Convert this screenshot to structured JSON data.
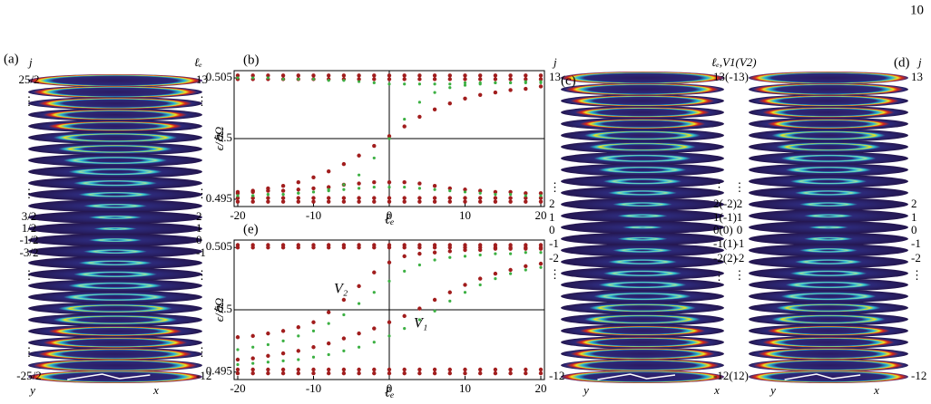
{
  "page_number": "10",
  "panels": {
    "a": {
      "label": "(a)",
      "j_label": "j",
      "l_label": "ℓₑ",
      "left_labels": [
        "25/2",
        "⋮",
        "⋮",
        "3/2",
        "1/2",
        "-1/2",
        "-3/2",
        "⋮",
        "⋮",
        "-25/2"
      ],
      "right_labels": [
        "13",
        "⋮",
        "⋮",
        "2",
        "1",
        "0",
        "-1",
        "⋮",
        "⋮",
        "-12"
      ],
      "y_axis": "y",
      "x_axis": "x"
    },
    "b": {
      "label": "(b)",
      "type": "scatter",
      "xlabel": "ℓₑ",
      "ylabel": "ϵ/ℏΩ",
      "xlim": [
        -20,
        20
      ],
      "ylim": [
        0.4944,
        0.5056
      ],
      "xticks": [
        -20,
        -10,
        0,
        10,
        20
      ],
      "yticks": [
        0.495,
        0.5,
        0.505
      ],
      "x": [
        -20,
        -18,
        -16,
        -14,
        -12,
        -10,
        -8,
        -6,
        -4,
        -2,
        0,
        2,
        4,
        6,
        8,
        10,
        12,
        14,
        16,
        18,
        20
      ],
      "series": [
        {
          "color": "#a11d1d",
          "values": [
            0.5052,
            0.5052,
            0.5052,
            0.5052,
            0.5052,
            0.5052,
            0.5052,
            0.5052,
            0.5052,
            0.5052,
            0.5052,
            0.5052,
            0.5052,
            0.5052,
            0.5052,
            0.5052,
            0.5052,
            0.5052,
            0.5052,
            0.5052,
            0.5052
          ]
        },
        {
          "color": "#a11d1d",
          "values": [
            0.5049,
            0.5049,
            0.5049,
            0.5049,
            0.5049,
            0.5049,
            0.5049,
            0.5049,
            0.5049,
            0.5049,
            0.5049,
            0.5049,
            0.5049,
            0.5049,
            0.5049,
            0.5049,
            0.5049,
            0.5049,
            0.5049,
            0.5049,
            0.5049
          ]
        },
        {
          "color": "#a11d1d",
          "values": [
            0.4955,
            0.4957,
            0.4959,
            0.4961,
            0.4964,
            0.4968,
            0.4973,
            0.4979,
            0.4986,
            0.4994,
            0.5002,
            0.501,
            0.5018,
            0.5024,
            0.5029,
            0.5033,
            0.5036,
            0.5038,
            0.504,
            0.5041,
            0.5043
          ]
        },
        {
          "color": "#a11d1d",
          "values": [
            0.4956,
            0.4956,
            0.4957,
            0.4957,
            0.4958,
            0.4959,
            0.496,
            0.4962,
            0.4963,
            0.4964,
            0.4964,
            0.4964,
            0.4963,
            0.4961,
            0.4959,
            0.4958,
            0.4957,
            0.4956,
            0.4956,
            0.4955,
            0.4955
          ]
        },
        {
          "color": "#a11d1d",
          "values": [
            0.4951,
            0.4951,
            0.4951,
            0.4951,
            0.4951,
            0.4951,
            0.4951,
            0.4951,
            0.4951,
            0.4951,
            0.4951,
            0.4951,
            0.4951,
            0.4951,
            0.4951,
            0.4951,
            0.4951,
            0.4951,
            0.4951,
            0.4951,
            0.4951
          ]
        },
        {
          "color": "#a11d1d",
          "values": [
            0.4948,
            0.4948,
            0.4948,
            0.4948,
            0.4948,
            0.4948,
            0.4948,
            0.4948,
            0.4948,
            0.4948,
            0.4948,
            0.4948,
            0.4948,
            0.4948,
            0.4948,
            0.4948,
            0.4948,
            0.4948,
            0.4948,
            0.4948,
            0.4948
          ]
        },
        {
          "color": "#3cb043",
          "values": [
            0.505,
            0.505,
            0.505,
            0.5049,
            0.5049,
            0.5049,
            0.5048,
            0.5048,
            0.5047,
            0.5046,
            0.5045,
            0.5045,
            0.5045,
            0.5045,
            0.5045,
            0.5046,
            0.5046,
            0.5046,
            0.5046,
            0.5046,
            0.5046
          ]
        },
        {
          "color": "#3cb043",
          "values": [
            0.4953,
            0.4953,
            0.4954,
            0.4954,
            0.4955,
            0.4956,
            0.4958,
            0.4962,
            0.497,
            0.4984,
            0.5,
            0.5016,
            0.503,
            0.5038,
            0.5042,
            0.5044,
            0.5045,
            0.5046,
            0.5046,
            0.5047,
            0.5047
          ]
        },
        {
          "color": "#3cb043",
          "values": [
            0.4953,
            0.4953,
            0.4954,
            0.4954,
            0.4955,
            0.4956,
            0.4957,
            0.4958,
            0.4959,
            0.496,
            0.496,
            0.496,
            0.4959,
            0.4958,
            0.4957,
            0.4956,
            0.4955,
            0.4954,
            0.4954,
            0.4953,
            0.4953
          ]
        }
      ]
    },
    "c": {
      "label": "(c)",
      "j_label": "j",
      "l_label": "ℓₑ,V1(V2)",
      "left_labels": [
        "13",
        "⋮",
        "2",
        "1",
        "0",
        "-1",
        "-2",
        "⋮",
        "-12"
      ],
      "right_labels": [
        "13(-13)",
        "⋮",
        "2(-2)",
        "1(-1)",
        "0(0)",
        "-1(1)",
        "-2(2)",
        "⋮",
        "-12(12)"
      ],
      "y_axis": "y",
      "x_axis": "x"
    },
    "d": {
      "label": "(d)",
      "j_label": "j",
      "left_labels": [
        "⋮",
        "2",
        "1",
        "0",
        "-1",
        "-2",
        "⋮"
      ],
      "right_labels": [
        "13",
        "2",
        "1",
        "0",
        "-1",
        "-2",
        "⋮",
        "-12"
      ],
      "y_axis": "y",
      "x_axis": "x"
    },
    "e": {
      "label": "(e)",
      "type": "scatter",
      "xlabel": "ℓₑ",
      "ylabel": "ϵ/ℏΩ",
      "xlim": [
        -20,
        20
      ],
      "ylim": [
        0.4944,
        0.5056
      ],
      "xticks": [
        -20,
        -10,
        0,
        10,
        20
      ],
      "yticks": [
        0.495,
        0.5,
        0.505
      ],
      "annotations": [
        "V₂",
        "V₁"
      ],
      "x": [
        -20,
        -18,
        -16,
        -14,
        -12,
        -10,
        -8,
        -6,
        -4,
        -2,
        0,
        2,
        4,
        6,
        8,
        10,
        12,
        14,
        16,
        18,
        20
      ],
      "series": [
        {
          "color": "#a11d1d",
          "values": [
            0.5052,
            0.5052,
            0.5052,
            0.5052,
            0.5052,
            0.5052,
            0.5052,
            0.5052,
            0.5052,
            0.5052,
            0.5052,
            0.5052,
            0.5052,
            0.5052,
            0.5052,
            0.5052,
            0.5052,
            0.5052,
            0.5052,
            0.5052,
            0.5052
          ]
        },
        {
          "color": "#a11d1d",
          "values": [
            0.505,
            0.505,
            0.505,
            0.505,
            0.505,
            0.505,
            0.505,
            0.505,
            0.505,
            0.505,
            0.505,
            0.505,
            0.505,
            0.505,
            0.505,
            0.505,
            0.505,
            0.505,
            0.505,
            0.505,
            0.505
          ]
        },
        {
          "color": "#a11d1d",
          "values": [
            0.4978,
            0.4979,
            0.4981,
            0.4983,
            0.4986,
            0.499,
            0.4998,
            0.5008,
            0.5019,
            0.503,
            0.5038,
            0.5043,
            0.5045,
            0.5046,
            0.5047,
            0.5048,
            0.5048,
            0.5049,
            0.5049,
            0.5049,
            0.5049
          ]
        },
        {
          "color": "#a11d1d",
          "values": [
            0.496,
            0.4961,
            0.4963,
            0.4965,
            0.4967,
            0.497,
            0.4973,
            0.4977,
            0.4981,
            0.4985,
            0.499,
            0.4995,
            0.5001,
            0.5008,
            0.5014,
            0.502,
            0.5025,
            0.5029,
            0.5032,
            0.5035,
            0.5037
          ]
        },
        {
          "color": "#a11d1d",
          "values": [
            0.4952,
            0.4952,
            0.4952,
            0.4952,
            0.4952,
            0.4952,
            0.4952,
            0.4952,
            0.4952,
            0.4952,
            0.4952,
            0.4952,
            0.4952,
            0.4952,
            0.4952,
            0.4952,
            0.4952,
            0.4952,
            0.4952,
            0.4952,
            0.4952
          ]
        },
        {
          "color": "#a11d1d",
          "values": [
            0.4949,
            0.4949,
            0.4949,
            0.4949,
            0.4949,
            0.4949,
            0.4949,
            0.4949,
            0.4949,
            0.4949,
            0.4949,
            0.4949,
            0.4949,
            0.4949,
            0.4949,
            0.4949,
            0.4949,
            0.4949,
            0.4949,
            0.4949,
            0.4949
          ]
        },
        {
          "color": "#3cb043",
          "values": [
            0.4968,
            0.497,
            0.4972,
            0.4975,
            0.4979,
            0.4983,
            0.4989,
            0.4996,
            0.5005,
            0.5014,
            0.5023,
            0.5031,
            0.5036,
            0.504,
            0.5042,
            0.5043,
            0.5044,
            0.5045,
            0.5045,
            0.5046,
            0.5046
          ]
        },
        {
          "color": "#3cb043",
          "values": [
            0.4956,
            0.4957,
            0.4958,
            0.4959,
            0.496,
            0.4962,
            0.4964,
            0.4967,
            0.497,
            0.4974,
            0.4979,
            0.4985,
            0.4992,
            0.4999,
            0.5007,
            0.5014,
            0.502,
            0.5025,
            0.5029,
            0.5032,
            0.5034
          ]
        }
      ]
    }
  }
}
